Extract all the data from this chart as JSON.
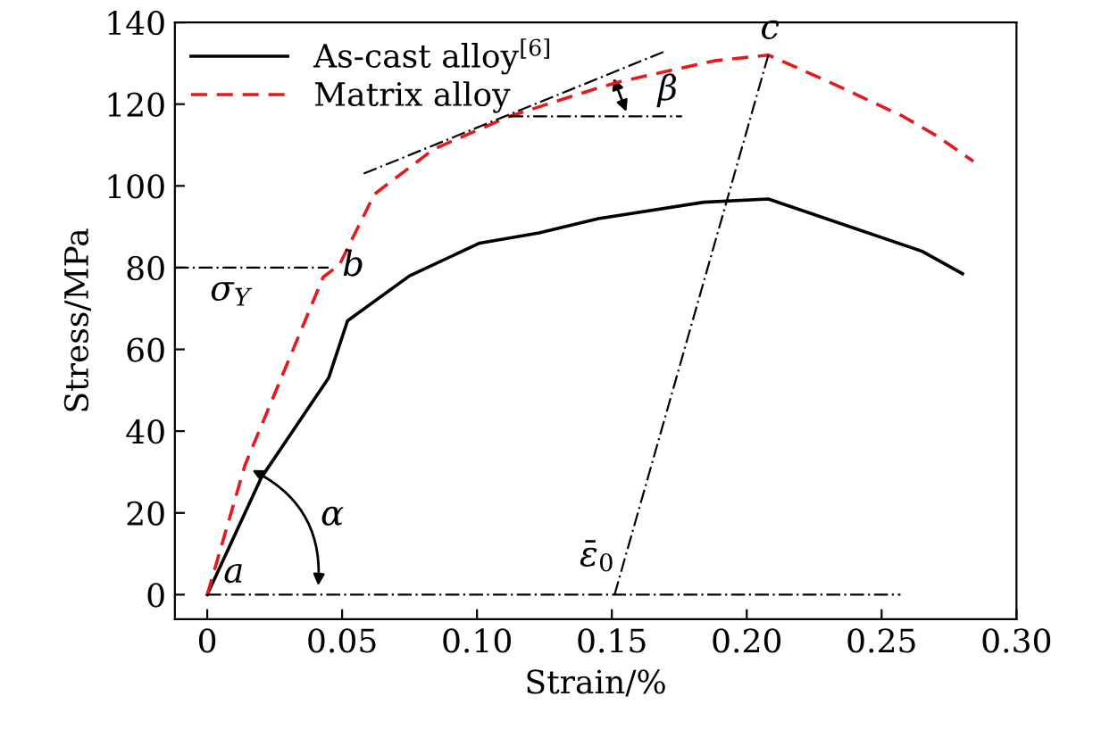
{
  "chart_data": {
    "type": "line",
    "xlabel": "Strain/%",
    "ylabel": "Stress/MPa",
    "xlim": [
      -0.012,
      0.3
    ],
    "ylim": [
      -6,
      140
    ],
    "xticks": [
      {
        "value": 0,
        "label": "0"
      },
      0.05,
      {
        "value": 0.1,
        "label": "0.10"
      },
      0.15,
      {
        "value": 0.2,
        "label": "0.20"
      },
      0.25,
      {
        "value": 0.3,
        "label": "0.30"
      }
    ],
    "yticks": [
      0,
      20,
      40,
      60,
      80,
      100,
      120,
      140
    ],
    "grid": false,
    "legend": "top left",
    "series": [
      {
        "name": "As-cast alloy$^{[6]}$",
        "color": "#000000",
        "line_style": "solid",
        "x": [
          0,
          0.02,
          0.045,
          0.052,
          0.075,
          0.101,
          0.123,
          0.145,
          0.184,
          0.208,
          0.265,
          0.28
        ],
        "values": [
          0,
          28.6,
          53,
          67,
          78,
          86,
          88.5,
          92,
          96,
          96.8,
          84,
          78.5
        ]
      },
      {
        "name": "Matrix alloy",
        "color": "#e41a1c",
        "line_style": "dashed",
        "x": [
          0,
          0.014,
          0.043,
          0.049,
          0.062,
          0.084,
          0.112,
          0.145,
          0.153,
          0.188,
          0.208,
          0.232,
          0.258,
          0.271,
          0.284
        ],
        "values": [
          0,
          31.7,
          77.7,
          80.7,
          98,
          109,
          117,
          124,
          125.5,
          130.6,
          132,
          125,
          117,
          112,
          106
        ]
      },
      {
        "color": "#000000",
        "line_style": "dashdot",
        "x": [
          0,
          0.257
        ],
        "values": [
          0,
          0
        ]
      },
      {
        "color": "#000000",
        "line_style": "dashdot",
        "x": [
          -0.012,
          0.045
        ],
        "values": [
          80,
          80
        ]
      },
      {
        "color": "#000000",
        "line_style": "dashdot",
        "x": [
          0.058,
          0.17
        ],
        "values": [
          103,
          133
        ]
      },
      {
        "color": "#000000",
        "line_style": "dashdot",
        "x": [
          0.112,
          0.176
        ],
        "values": [
          117,
          117
        ]
      },
      {
        "color": "#000000",
        "line_style": "dashdot",
        "x": [
          0.151,
          0.208
        ],
        "values": [
          0,
          132
        ]
      }
    ],
    "annotations": [
      "a",
      "b",
      "c",
      "α",
      "β",
      "σ$_{Y}$",
      "ε̄$_{0}$"
    ]
  }
}
